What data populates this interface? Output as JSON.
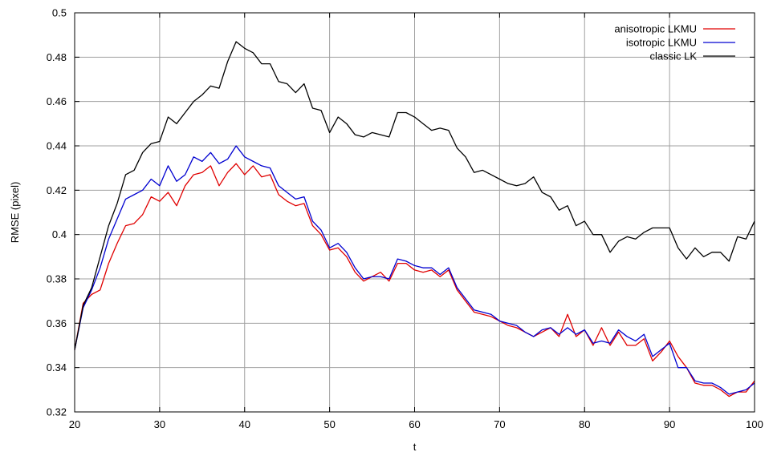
{
  "chart_data": {
    "type": "line",
    "title": "",
    "xlabel": "t",
    "ylabel": "RMSE (pixel)",
    "xlim": [
      20,
      100
    ],
    "ylim": [
      0.32,
      0.5
    ],
    "xticks": [
      20,
      30,
      40,
      50,
      60,
      70,
      80,
      90,
      100
    ],
    "yticks": [
      0.32,
      0.34,
      0.36,
      0.38,
      0.4,
      0.42,
      0.44,
      0.46,
      0.48,
      0.5
    ],
    "xtick_labels": [
      "20",
      "30",
      "40",
      "50",
      "60",
      "70",
      "80",
      "90",
      "100"
    ],
    "ytick_labels": [
      "0.32",
      "0.34",
      "0.36",
      "0.38",
      "0.4",
      "0.42",
      "0.44",
      "0.46",
      "0.48",
      "0.5"
    ],
    "grid": true,
    "legend_position": "top-right",
    "x": [
      20,
      21,
      22,
      23,
      24,
      25,
      26,
      27,
      28,
      29,
      30,
      31,
      32,
      33,
      34,
      35,
      36,
      37,
      38,
      39,
      40,
      41,
      42,
      43,
      44,
      45,
      46,
      47,
      48,
      49,
      50,
      51,
      52,
      53,
      54,
      55,
      56,
      57,
      58,
      59,
      60,
      61,
      62,
      63,
      64,
      65,
      66,
      67,
      68,
      69,
      70,
      71,
      72,
      73,
      74,
      75,
      76,
      77,
      78,
      79,
      80,
      81,
      82,
      83,
      84,
      85,
      86,
      87,
      88,
      89,
      90,
      91,
      92,
      93,
      94,
      95,
      96,
      97,
      98,
      99,
      100
    ],
    "series": [
      {
        "name": "anisotropic LKMU",
        "color": "#e00000",
        "values": [
          0.348,
          0.369,
          0.373,
          0.375,
          0.387,
          0.396,
          0.404,
          0.405,
          0.409,
          0.417,
          0.415,
          0.419,
          0.413,
          0.422,
          0.427,
          0.428,
          0.431,
          0.422,
          0.428,
          0.432,
          0.427,
          0.431,
          0.426,
          0.427,
          0.418,
          0.415,
          0.413,
          0.414,
          0.404,
          0.4,
          0.393,
          0.394,
          0.39,
          0.383,
          0.379,
          0.381,
          0.383,
          0.379,
          0.387,
          0.387,
          0.384,
          0.383,
          0.384,
          0.381,
          0.384,
          0.375,
          0.37,
          0.365,
          0.364,
          0.363,
          0.361,
          0.359,
          0.358,
          0.356,
          0.354,
          0.356,
          0.358,
          0.354,
          0.364,
          0.354,
          0.357,
          0.35,
          0.358,
          0.35,
          0.356,
          0.35,
          0.35,
          0.353,
          0.343,
          0.347,
          0.352,
          0.345,
          0.34,
          0.333,
          0.332,
          0.332,
          0.33,
          0.327,
          0.329,
          0.329,
          0.334
        ]
      },
      {
        "name": "isotropic LKMU",
        "color": "#0000d0",
        "values": [
          0.348,
          0.367,
          0.375,
          0.385,
          0.398,
          0.407,
          0.416,
          0.418,
          0.42,
          0.425,
          0.422,
          0.431,
          0.424,
          0.427,
          0.435,
          0.433,
          0.437,
          0.432,
          0.434,
          0.44,
          0.435,
          0.433,
          0.431,
          0.43,
          0.422,
          0.419,
          0.416,
          0.417,
          0.406,
          0.402,
          0.394,
          0.396,
          0.392,
          0.385,
          0.38,
          0.381,
          0.381,
          0.38,
          0.389,
          0.388,
          0.386,
          0.385,
          0.385,
          0.382,
          0.385,
          0.376,
          0.371,
          0.366,
          0.365,
          0.364,
          0.361,
          0.36,
          0.359,
          0.356,
          0.354,
          0.357,
          0.358,
          0.355,
          0.358,
          0.355,
          0.357,
          0.351,
          0.352,
          0.351,
          0.357,
          0.354,
          0.352,
          0.355,
          0.345,
          0.348,
          0.351,
          0.34,
          0.34,
          0.334,
          0.333,
          0.333,
          0.331,
          0.328,
          0.329,
          0.33,
          0.333
        ]
      },
      {
        "name": "classic LK",
        "color": "#000000",
        "values": [
          0.348,
          0.368,
          0.376,
          0.39,
          0.404,
          0.414,
          0.427,
          0.429,
          0.437,
          0.441,
          0.442,
          0.453,
          0.45,
          0.455,
          0.46,
          0.463,
          0.467,
          0.466,
          0.478,
          0.487,
          0.484,
          0.482,
          0.477,
          0.477,
          0.469,
          0.468,
          0.464,
          0.468,
          0.457,
          0.456,
          0.446,
          0.453,
          0.45,
          0.445,
          0.444,
          0.446,
          0.445,
          0.444,
          0.455,
          0.455,
          0.453,
          0.45,
          0.447,
          0.448,
          0.447,
          0.439,
          0.435,
          0.428,
          0.429,
          0.427,
          0.425,
          0.423,
          0.422,
          0.423,
          0.426,
          0.419,
          0.417,
          0.411,
          0.413,
          0.404,
          0.406,
          0.4,
          0.4,
          0.392,
          0.397,
          0.399,
          0.398,
          0.401,
          0.403,
          0.403,
          0.403,
          0.394,
          0.389,
          0.394,
          0.39,
          0.392,
          0.392,
          0.388,
          0.399,
          0.398,
          0.406
        ]
      }
    ]
  }
}
